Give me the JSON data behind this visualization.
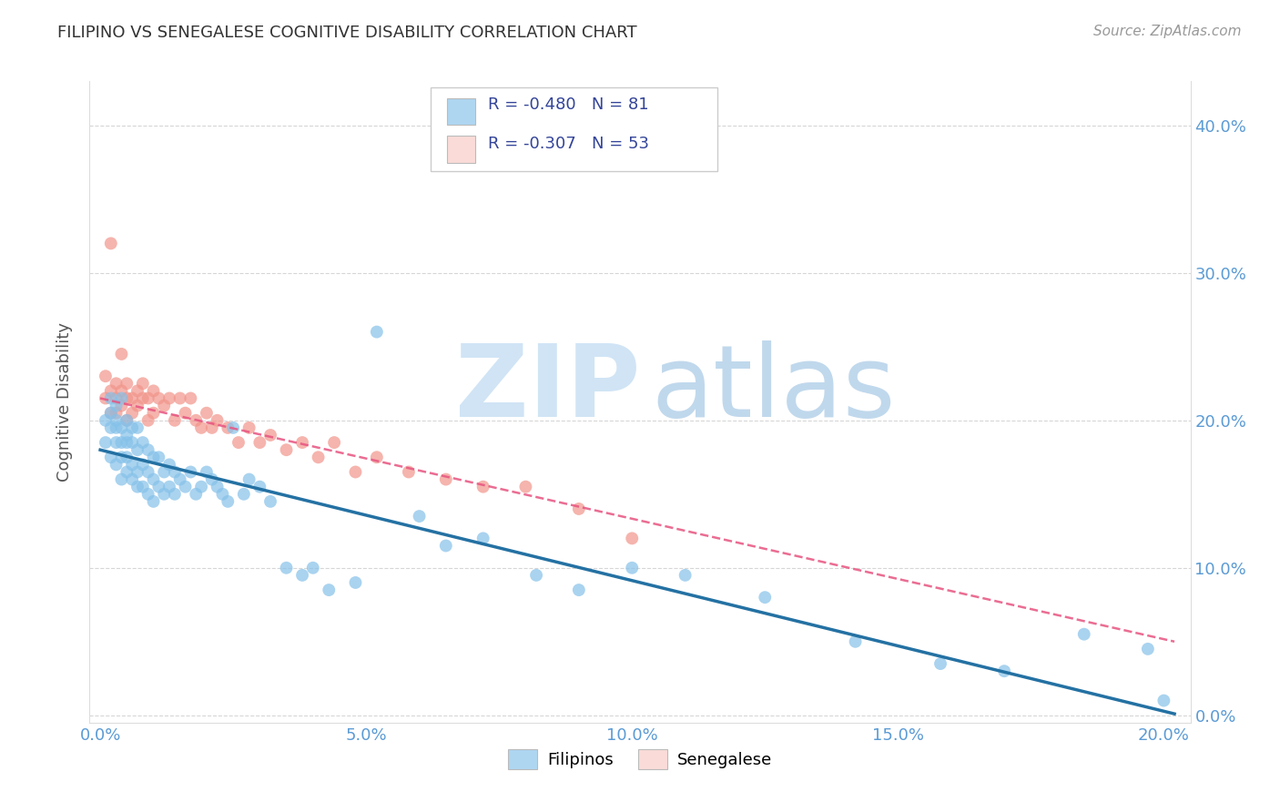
{
  "title": "FILIPINO VS SENEGALESE COGNITIVE DISABILITY CORRELATION CHART",
  "source": "Source: ZipAtlas.com",
  "ylabel": "Cognitive Disability",
  "xlabel_ticks": [
    "0.0%",
    "5.0%",
    "10.0%",
    "15.0%",
    "20.0%"
  ],
  "xlabel_vals": [
    0.0,
    0.05,
    0.1,
    0.15,
    0.2
  ],
  "ylabel_ticks_right": [
    "0.0%",
    "10.0%",
    "20.0%",
    "30.0%",
    "40.0%"
  ],
  "ylabel_vals": [
    0.0,
    0.1,
    0.2,
    0.3,
    0.4
  ],
  "xlim": [
    -0.002,
    0.205
  ],
  "ylim": [
    -0.005,
    0.43
  ],
  "filipino_R": -0.48,
  "filipino_N": 81,
  "senegalese_R": -0.307,
  "senegalese_N": 53,
  "filipino_color": "#85C1E9",
  "senegalese_color": "#F1948A",
  "trendline_filipino_color": "#2471A3",
  "trendline_senegalese_color": "#E75480",
  "watermark_zip_color": "#D0E4F5",
  "watermark_atlas_color": "#C0D8EC",
  "background_color": "#FFFFFF",
  "grid_color": "#CCCCCC",
  "title_color": "#333333",
  "tick_color": "#5B9BD5",
  "legend_box_color_filipino": "#AED6F1",
  "legend_box_color_senegalese": "#FADBD8",
  "filipino_x": [
    0.001,
    0.001,
    0.002,
    0.002,
    0.002,
    0.002,
    0.003,
    0.003,
    0.003,
    0.003,
    0.003,
    0.004,
    0.004,
    0.004,
    0.004,
    0.004,
    0.005,
    0.005,
    0.005,
    0.005,
    0.005,
    0.006,
    0.006,
    0.006,
    0.006,
    0.007,
    0.007,
    0.007,
    0.007,
    0.008,
    0.008,
    0.008,
    0.009,
    0.009,
    0.009,
    0.01,
    0.01,
    0.01,
    0.011,
    0.011,
    0.012,
    0.012,
    0.013,
    0.013,
    0.014,
    0.014,
    0.015,
    0.016,
    0.017,
    0.018,
    0.019,
    0.02,
    0.021,
    0.022,
    0.023,
    0.024,
    0.025,
    0.027,
    0.028,
    0.03,
    0.032,
    0.035,
    0.038,
    0.04,
    0.043,
    0.048,
    0.052,
    0.06,
    0.065,
    0.072,
    0.082,
    0.09,
    0.1,
    0.11,
    0.125,
    0.142,
    0.158,
    0.17,
    0.185,
    0.197,
    0.2
  ],
  "filipino_y": [
    0.185,
    0.2,
    0.195,
    0.215,
    0.205,
    0.175,
    0.195,
    0.21,
    0.185,
    0.2,
    0.17,
    0.195,
    0.215,
    0.185,
    0.175,
    0.16,
    0.2,
    0.185,
    0.175,
    0.165,
    0.19,
    0.195,
    0.185,
    0.17,
    0.16,
    0.195,
    0.18,
    0.165,
    0.155,
    0.185,
    0.17,
    0.155,
    0.18,
    0.165,
    0.15,
    0.175,
    0.16,
    0.145,
    0.175,
    0.155,
    0.165,
    0.15,
    0.17,
    0.155,
    0.165,
    0.15,
    0.16,
    0.155,
    0.165,
    0.15,
    0.155,
    0.165,
    0.16,
    0.155,
    0.15,
    0.145,
    0.195,
    0.15,
    0.16,
    0.155,
    0.145,
    0.1,
    0.095,
    0.1,
    0.085,
    0.09,
    0.26,
    0.135,
    0.115,
    0.12,
    0.095,
    0.085,
    0.1,
    0.095,
    0.08,
    0.05,
    0.035,
    0.03,
    0.055,
    0.045,
    0.01
  ],
  "senegalese_x": [
    0.001,
    0.001,
    0.002,
    0.002,
    0.002,
    0.003,
    0.003,
    0.003,
    0.004,
    0.004,
    0.004,
    0.005,
    0.005,
    0.005,
    0.006,
    0.006,
    0.007,
    0.007,
    0.008,
    0.008,
    0.009,
    0.009,
    0.01,
    0.01,
    0.011,
    0.012,
    0.013,
    0.014,
    0.015,
    0.016,
    0.017,
    0.018,
    0.019,
    0.02,
    0.021,
    0.022,
    0.024,
    0.026,
    0.028,
    0.03,
    0.032,
    0.035,
    0.038,
    0.041,
    0.044,
    0.048,
    0.052,
    0.058,
    0.065,
    0.072,
    0.08,
    0.09,
    0.1
  ],
  "senegalese_y": [
    0.215,
    0.23,
    0.22,
    0.205,
    0.32,
    0.215,
    0.225,
    0.205,
    0.22,
    0.21,
    0.245,
    0.215,
    0.225,
    0.2,
    0.215,
    0.205,
    0.22,
    0.21,
    0.215,
    0.225,
    0.215,
    0.2,
    0.22,
    0.205,
    0.215,
    0.21,
    0.215,
    0.2,
    0.215,
    0.205,
    0.215,
    0.2,
    0.195,
    0.205,
    0.195,
    0.2,
    0.195,
    0.185,
    0.195,
    0.185,
    0.19,
    0.18,
    0.185,
    0.175,
    0.185,
    0.165,
    0.175,
    0.165,
    0.16,
    0.155,
    0.155,
    0.14,
    0.12
  ],
  "trendline_fil_x0": 0.0,
  "trendline_fil_y0": 0.18,
  "trendline_fil_x1": 0.202,
  "trendline_fil_y1": 0.001,
  "trendline_sen_x0": 0.0,
  "trendline_sen_y0": 0.215,
  "trendline_sen_x1": 0.202,
  "trendline_sen_y1": 0.05
}
